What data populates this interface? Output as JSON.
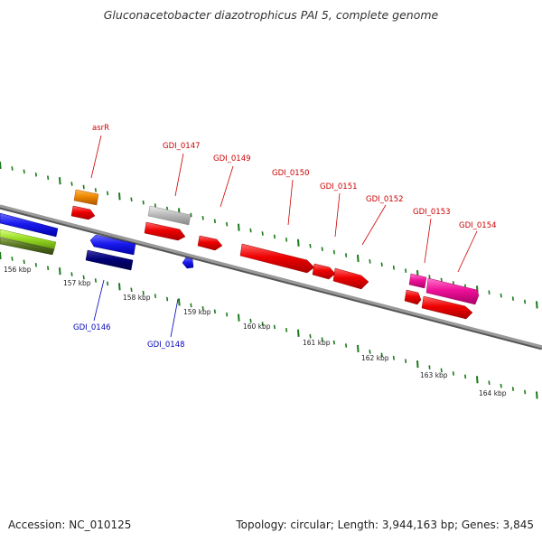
{
  "title": "Gluconacetobacter diazotrophicus PAI 5, complete genome",
  "footer": {
    "accession": "Accession: NC_010125",
    "summary": "Topology: circular; Length: 3,944,163 bp; Genes: 3,845"
  },
  "colors": {
    "backbone": "#888888",
    "tick": "#1a7a1a",
    "label_forward": "#cc0000",
    "label_reverse": "#0000bb"
  },
  "scale_labels": [
    "156 kbp",
    "157 kbp",
    "158 kbp",
    "159 kbp",
    "160 kbp",
    "161 kbp",
    "162 kbp",
    "163 kbp",
    "164 kbp"
  ],
  "gene_labels_forward": [
    "asrR",
    "GDI_0147",
    "GDI_0149",
    "GDI_0150",
    "GDI_0151",
    "GDI_0152",
    "GDI_0153",
    "GDI_0154"
  ],
  "gene_labels_reverse": [
    "GDI_0146",
    "GDI_0148"
  ],
  "features": [
    {
      "name": "feature-blue-left",
      "color": "#1a1aee"
    },
    {
      "name": "feature-lime-left",
      "color": "#99dd22"
    },
    {
      "name": "feature-olive-left",
      "color": "#557722"
    },
    {
      "name": "feature-orange",
      "color": "#ee8800"
    },
    {
      "name": "feature-red",
      "color": "#ee0000"
    },
    {
      "name": "feature-blue",
      "color": "#1a1aee"
    },
    {
      "name": "feature-navy",
      "color": "#000077"
    },
    {
      "name": "feature-gray",
      "color": "#bbbbbb"
    },
    {
      "name": "feature-magenta",
      "color": "#ee1199"
    }
  ]
}
